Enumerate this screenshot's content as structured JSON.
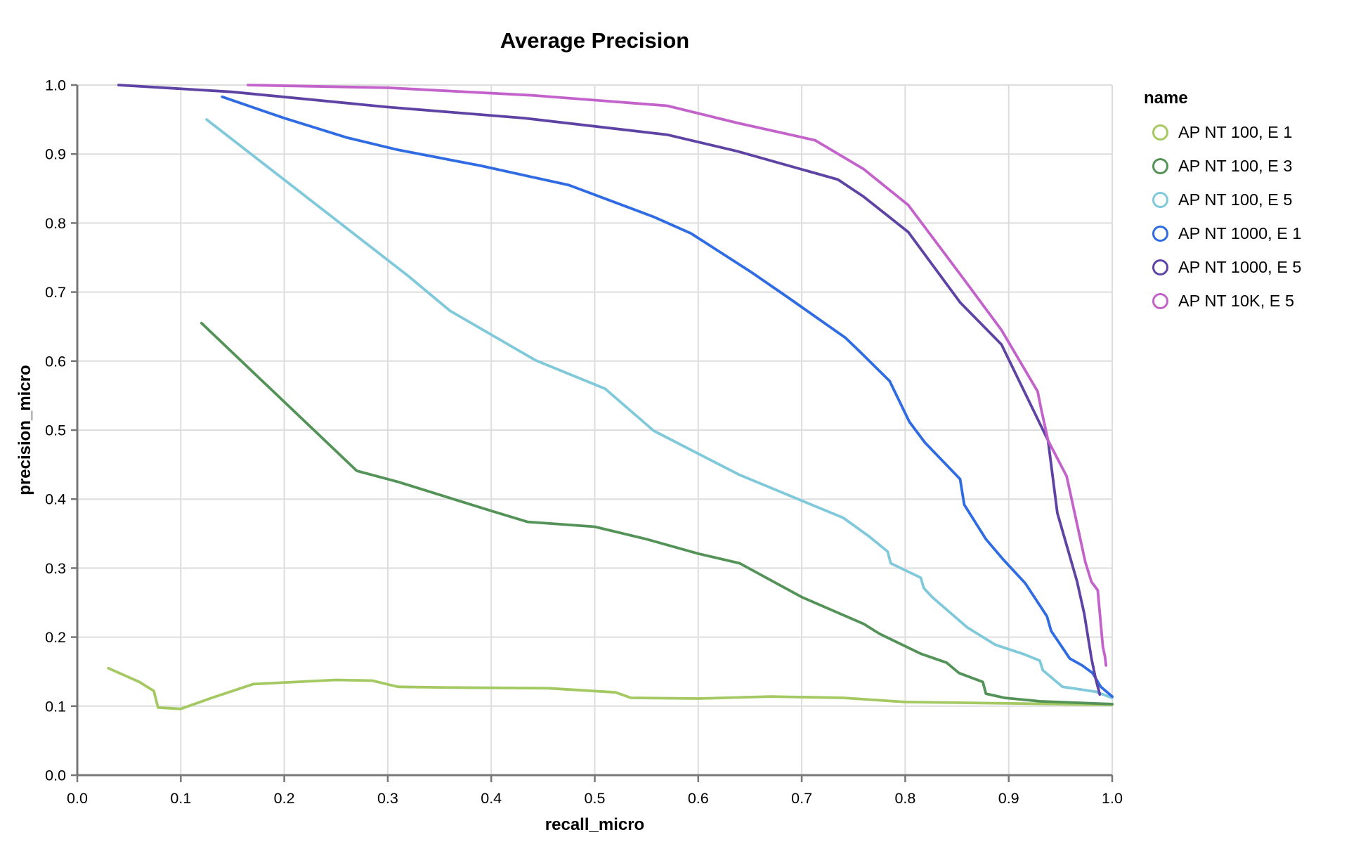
{
  "chart_data": {
    "type": "line",
    "title": "Average Precision",
    "xlabel": "recall_micro",
    "ylabel": "precision_micro",
    "xlim": [
      0.0,
      1.0
    ],
    "ylim": [
      0.0,
      1.0
    ],
    "x_tick_labels": [
      "0.0",
      "0.1",
      "0.2",
      "0.3",
      "0.4",
      "0.5",
      "0.6",
      "0.7",
      "0.8",
      "0.9",
      "1.0"
    ],
    "y_tick_labels": [
      "0.0",
      "0.1",
      "0.2",
      "0.3",
      "0.4",
      "0.5",
      "0.6",
      "0.7",
      "0.8",
      "0.9",
      "1.0"
    ],
    "grid": true,
    "legend_title": "name",
    "legend_position": "right",
    "colors": {
      "background": "#ffffff",
      "gridline": "#dddddd",
      "axis": "#777777",
      "text": "#000000"
    },
    "series": [
      {
        "name": "AP NT 100, E 1",
        "color": "#a4c962",
        "points": [
          [
            0.03,
            0.155
          ],
          [
            0.06,
            0.135
          ],
          [
            0.074,
            0.122
          ],
          [
            0.078,
            0.098
          ],
          [
            0.1,
            0.096
          ],
          [
            0.13,
            0.112
          ],
          [
            0.17,
            0.132
          ],
          [
            0.25,
            0.138
          ],
          [
            0.285,
            0.137
          ],
          [
            0.31,
            0.128
          ],
          [
            0.36,
            0.127
          ],
          [
            0.455,
            0.126
          ],
          [
            0.52,
            0.12
          ],
          [
            0.535,
            0.112
          ],
          [
            0.6,
            0.111
          ],
          [
            0.67,
            0.114
          ],
          [
            0.74,
            0.112
          ],
          [
            0.8,
            0.106
          ],
          [
            0.9,
            0.104
          ],
          [
            1.0,
            0.102
          ]
        ]
      },
      {
        "name": "AP NT 100, E 3",
        "color": "#549358",
        "points": [
          [
            0.12,
            0.655
          ],
          [
            0.27,
            0.441
          ],
          [
            0.31,
            0.425
          ],
          [
            0.4,
            0.383
          ],
          [
            0.435,
            0.367
          ],
          [
            0.5,
            0.36
          ],
          [
            0.55,
            0.342
          ],
          [
            0.6,
            0.321
          ],
          [
            0.64,
            0.307
          ],
          [
            0.7,
            0.258
          ],
          [
            0.76,
            0.219
          ],
          [
            0.775,
            0.205
          ],
          [
            0.815,
            0.176
          ],
          [
            0.84,
            0.163
          ],
          [
            0.852,
            0.148
          ],
          [
            0.875,
            0.135
          ],
          [
            0.878,
            0.118
          ],
          [
            0.896,
            0.112
          ],
          [
            0.93,
            0.107
          ],
          [
            1.0,
            0.103
          ]
        ]
      },
      {
        "name": "AP NT 100, E 5",
        "color": "#80c9da",
        "points": [
          [
            0.125,
            0.95
          ],
          [
            0.32,
            0.723
          ],
          [
            0.36,
            0.673
          ],
          [
            0.443,
            0.601
          ],
          [
            0.51,
            0.56
          ],
          [
            0.557,
            0.499
          ],
          [
            0.64,
            0.435
          ],
          [
            0.74,
            0.373
          ],
          [
            0.765,
            0.346
          ],
          [
            0.783,
            0.324
          ],
          [
            0.786,
            0.307
          ],
          [
            0.815,
            0.286
          ],
          [
            0.818,
            0.271
          ],
          [
            0.826,
            0.258
          ],
          [
            0.86,
            0.214
          ],
          [
            0.887,
            0.189
          ],
          [
            0.915,
            0.175
          ],
          [
            0.93,
            0.166
          ],
          [
            0.933,
            0.152
          ],
          [
            0.952,
            0.128
          ],
          [
            0.984,
            0.121
          ],
          [
            1.0,
            0.112
          ]
        ]
      },
      {
        "name": "AP NT 1000, E 1",
        "color": "#2f6be2",
        "points": [
          [
            0.14,
            0.983
          ],
          [
            0.2,
            0.952
          ],
          [
            0.26,
            0.924
          ],
          [
            0.31,
            0.906
          ],
          [
            0.39,
            0.883
          ],
          [
            0.475,
            0.855
          ],
          [
            0.557,
            0.809
          ],
          [
            0.593,
            0.785
          ],
          [
            0.65,
            0.73
          ],
          [
            0.686,
            0.693
          ],
          [
            0.742,
            0.634
          ],
          [
            0.756,
            0.614
          ],
          [
            0.785,
            0.571
          ],
          [
            0.804,
            0.512
          ],
          [
            0.819,
            0.482
          ],
          [
            0.853,
            0.429
          ],
          [
            0.857,
            0.392
          ],
          [
            0.878,
            0.342
          ],
          [
            0.895,
            0.312
          ],
          [
            0.916,
            0.278
          ],
          [
            0.937,
            0.23
          ],
          [
            0.941,
            0.209
          ],
          [
            0.959,
            0.169
          ],
          [
            0.971,
            0.159
          ],
          [
            0.981,
            0.148
          ],
          [
            0.989,
            0.128
          ],
          [
            1.0,
            0.114
          ]
        ]
      },
      {
        "name": "AP NT 1000, E 5",
        "color": "#5e43a5",
        "points": [
          [
            0.04,
            1.0
          ],
          [
            0.15,
            0.99
          ],
          [
            0.3,
            0.968
          ],
          [
            0.432,
            0.952
          ],
          [
            0.57,
            0.928
          ],
          [
            0.638,
            0.904
          ],
          [
            0.735,
            0.863
          ],
          [
            0.76,
            0.838
          ],
          [
            0.803,
            0.787
          ],
          [
            0.853,
            0.685
          ],
          [
            0.893,
            0.624
          ],
          [
            0.938,
            0.485
          ],
          [
            0.947,
            0.38
          ],
          [
            0.966,
            0.281
          ],
          [
            0.973,
            0.234
          ],
          [
            0.98,
            0.169
          ],
          [
            0.984,
            0.14
          ],
          [
            0.988,
            0.117
          ]
        ]
      },
      {
        "name": "AP NT 10K, E 5",
        "color": "#c262ca",
        "points": [
          [
            0.165,
            1.0
          ],
          [
            0.3,
            0.996
          ],
          [
            0.44,
            0.985
          ],
          [
            0.57,
            0.97
          ],
          [
            0.638,
            0.945
          ],
          [
            0.713,
            0.92
          ],
          [
            0.76,
            0.878
          ],
          [
            0.803,
            0.826
          ],
          [
            0.853,
            0.726
          ],
          [
            0.893,
            0.645
          ],
          [
            0.928,
            0.556
          ],
          [
            0.931,
            0.533
          ],
          [
            0.938,
            0.485
          ],
          [
            0.956,
            0.433
          ],
          [
            0.974,
            0.309
          ],
          [
            0.98,
            0.28
          ],
          [
            0.986,
            0.268
          ],
          [
            0.991,
            0.186
          ],
          [
            0.993,
            0.172
          ],
          [
            0.994,
            0.159
          ]
        ]
      }
    ]
  }
}
